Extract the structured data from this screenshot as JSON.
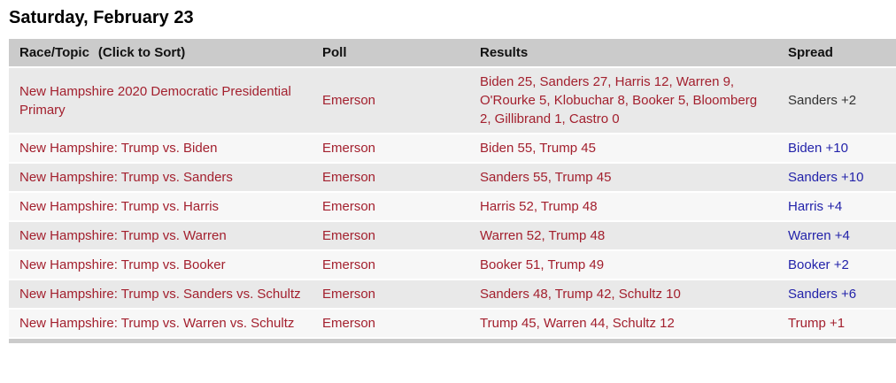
{
  "page": {
    "title": "Saturday, February 23"
  },
  "colors": {
    "race_red": "#a3202e",
    "spread_blue": "#2323aa",
    "spread_neutral": "#333333",
    "header_bg": "#cbcbcb",
    "row_odd_bg": "#e9e9e9",
    "row_even_bg": "#f7f7f7"
  },
  "table": {
    "headers": {
      "race": "Race/Topic",
      "sort_hint": "(Click to Sort)",
      "poll": "Poll",
      "results": "Results",
      "spread": "Spread"
    },
    "rows": [
      {
        "race": "New Hampshire 2020 Democratic Presidential Primary",
        "poll": "Emerson",
        "results": "Biden 25, Sanders 27, Harris 12, Warren 9, O'Rourke 5, Klobuchar 8, Booker 5, Bloomberg 2, Gillibrand 1, Castro 0",
        "spread": "Sanders +2",
        "spread_color": "neutral"
      },
      {
        "race": "New Hampshire: Trump vs. Biden",
        "poll": "Emerson",
        "results": "Biden 55, Trump 45",
        "spread": "Biden +10",
        "spread_color": "blue"
      },
      {
        "race": "New Hampshire: Trump vs. Sanders",
        "poll": "Emerson",
        "results": "Sanders 55, Trump 45",
        "spread": "Sanders +10",
        "spread_color": "blue"
      },
      {
        "race": "New Hampshire: Trump vs. Harris",
        "poll": "Emerson",
        "results": "Harris 52, Trump 48",
        "spread": "Harris +4",
        "spread_color": "blue"
      },
      {
        "race": "New Hampshire: Trump vs. Warren",
        "poll": "Emerson",
        "results": "Warren 52, Trump 48",
        "spread": "Warren +4",
        "spread_color": "blue"
      },
      {
        "race": "New Hampshire: Trump vs. Booker",
        "poll": "Emerson",
        "results": "Booker 51, Trump 49",
        "spread": "Booker +2",
        "spread_color": "blue"
      },
      {
        "race": "New Hampshire: Trump vs. Sanders vs. Schultz",
        "poll": "Emerson",
        "results": "Sanders 48, Trump 42, Schultz 10",
        "spread": "Sanders +6",
        "spread_color": "blue"
      },
      {
        "race": "New Hampshire: Trump vs. Warren vs. Schultz",
        "poll": "Emerson",
        "results": "Trump 45, Warren 44, Schultz 12",
        "spread": "Trump +1",
        "spread_color": "red"
      }
    ]
  }
}
